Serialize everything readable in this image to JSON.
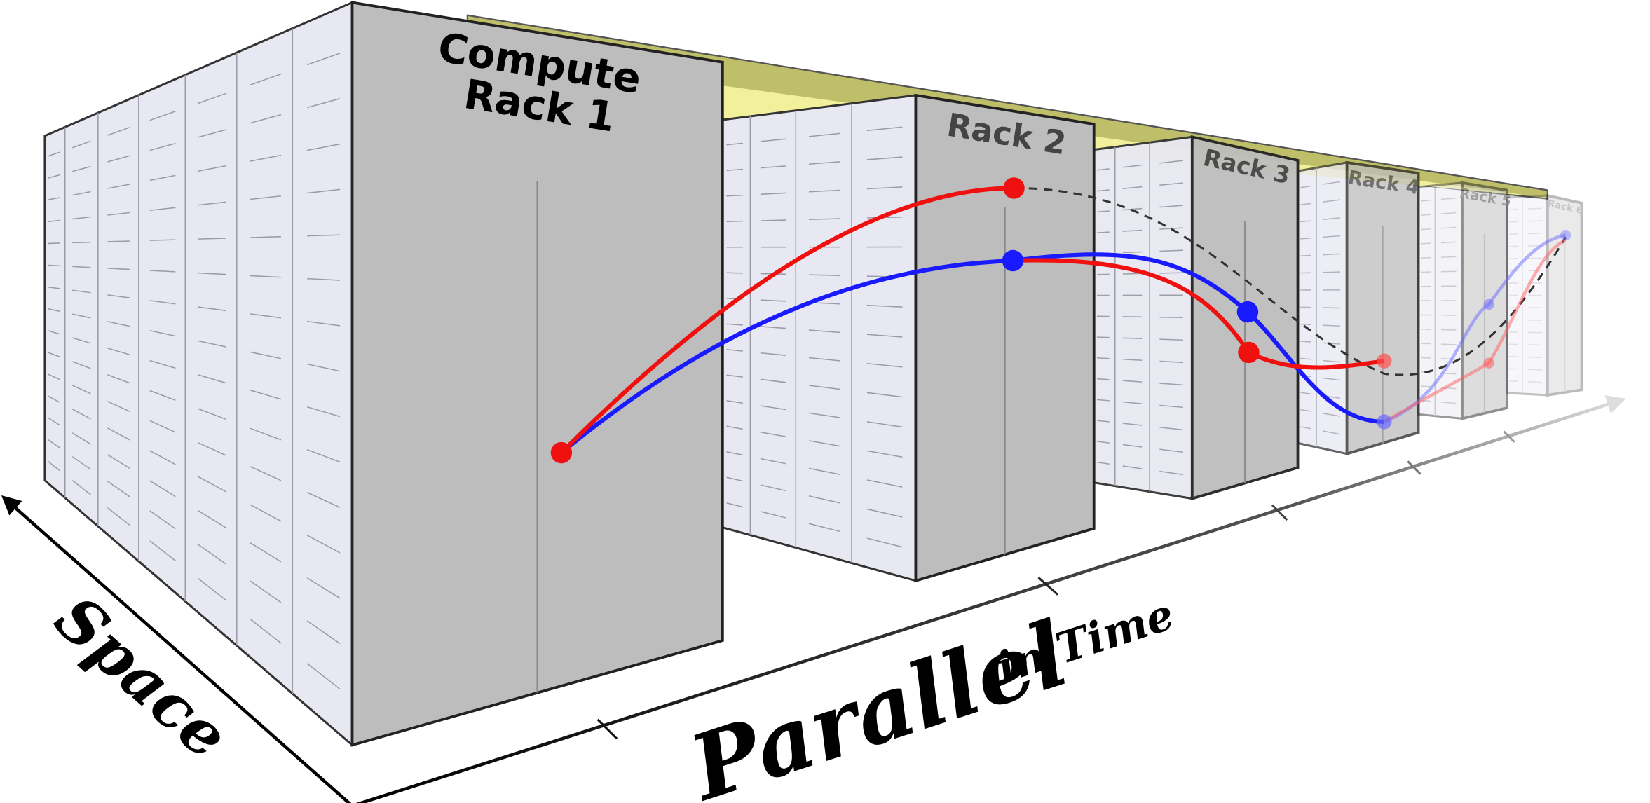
{
  "racks": [
    {
      "label": [
        "Compute",
        "Rack 1"
      ]
    },
    {
      "label": [
        "Rack 2"
      ]
    },
    {
      "label": [
        "Rack 3"
      ]
    },
    {
      "label": [
        "Rack 4"
      ]
    },
    {
      "label": [
        "Rack 5"
      ]
    },
    {
      "label": [
        "Rack 6"
      ]
    }
  ],
  "axes": {
    "space": "Space",
    "time": {
      "main": "Parallel",
      "sub": "in Time"
    }
  }
}
